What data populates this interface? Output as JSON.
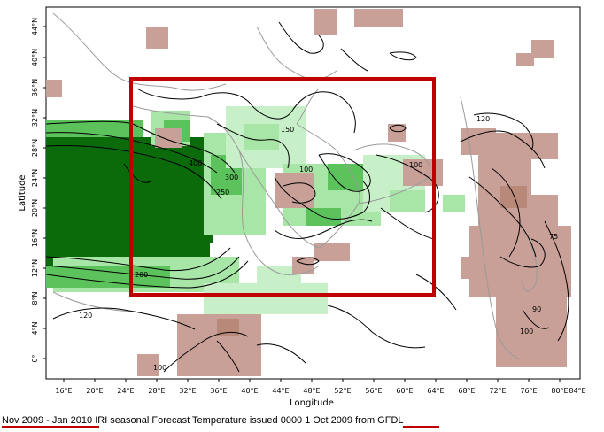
{
  "map": {
    "x_axis_title": "Longitude",
    "y_axis_title": "Latitude",
    "x_ticks": [
      "16°E",
      "20°E",
      "24°E",
      "28°E",
      "32°E",
      "36°E",
      "40°E",
      "44°E",
      "48°E",
      "52°E",
      "56°E",
      "60°E",
      "64°E",
      "68°E",
      "72°E",
      "76°E",
      "80°E",
      "84°E"
    ],
    "y_ticks": [
      "44°N",
      "40°N",
      "36°N",
      "32°N",
      "28°N",
      "24°N",
      "20°N",
      "16°N",
      "12°N",
      "8°N",
      "4°N",
      "0°"
    ],
    "contour_labels": [
      "150",
      "100",
      "400",
      "300",
      "250",
      "100",
      "120",
      "75",
      "200",
      "90",
      "100",
      "120",
      "100"
    ],
    "colors": {
      "dark_green": "#0b6b0b",
      "mid_green": "#5cc25c",
      "light_green": "#a8e6a8",
      "pale_green": "#c8f0c8",
      "brown": "#c8a098",
      "dark_brown": "#b88878",
      "highlight_box": "#c00000",
      "underline": "#c00000"
    }
  },
  "caption": {
    "period": "Nov 2009 - Jan 2010",
    "middle": " IRI seasonal Forecast Temperature issued 0000 1 Oct 2009 from ",
    "source": "GFDL"
  }
}
